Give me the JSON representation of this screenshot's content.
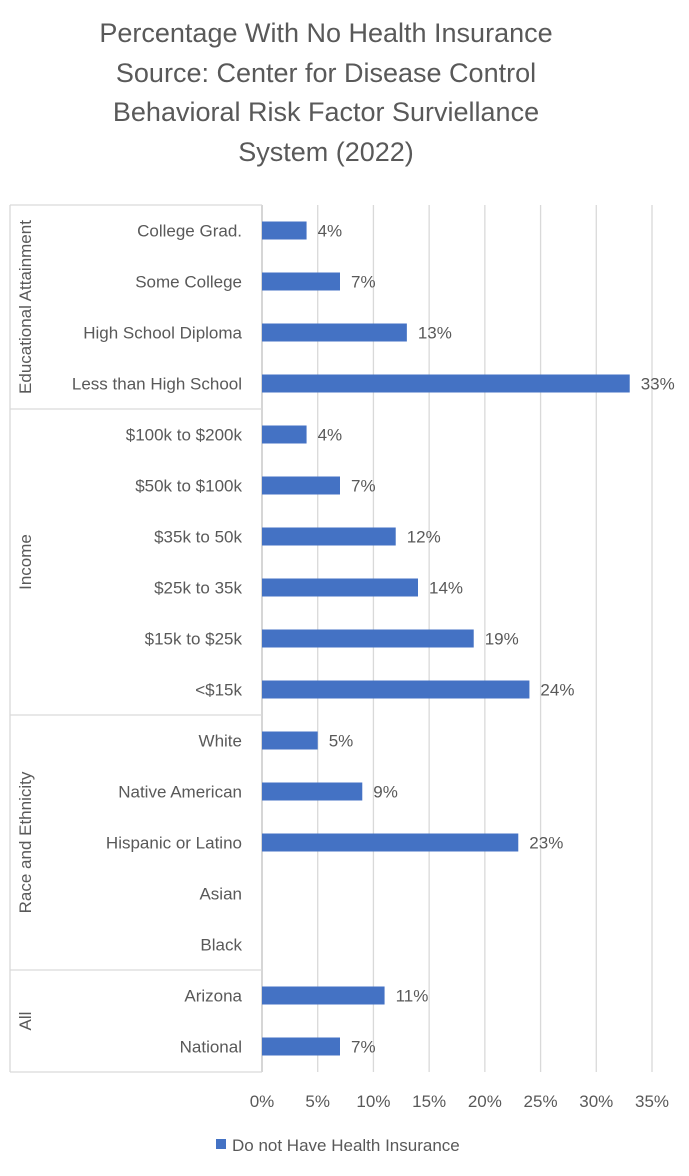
{
  "chart_data": {
    "type": "bar",
    "orientation": "horizontal",
    "title_lines": [
      "Percentage With No Health Insurance",
      "Source: Center for Disease Control",
      "Behavioral Risk Factor Surviellance",
      "System (2022)"
    ],
    "groups": [
      {
        "name": "Educational Attainment",
        "categories": [
          "College Grad.",
          "Some College",
          "High School Diploma",
          "Less than High School"
        ],
        "values": [
          4,
          7,
          13,
          33
        ]
      },
      {
        "name": "Income",
        "categories": [
          "$100k to $200k",
          "$50k to $100k",
          "$35k to 50k",
          "$25k to 35k",
          "$15k to $25k",
          "<$15k"
        ],
        "values": [
          4,
          7,
          12,
          14,
          19,
          24
        ]
      },
      {
        "name": "Race and Ethnicity",
        "categories": [
          "White",
          "Native American",
          "Hispanic or Latino",
          "Asian",
          "Black"
        ],
        "values": [
          5,
          9,
          23,
          null,
          null
        ]
      },
      {
        "name": "All",
        "categories": [
          "Arizona",
          "National"
        ],
        "values": [
          11,
          7
        ]
      }
    ],
    "series_name": "Do not Have Health Insurance",
    "xlim": [
      0,
      35
    ],
    "xticks": [
      "0%",
      "5%",
      "10%",
      "15%",
      "20%",
      "25%",
      "30%",
      "35%"
    ],
    "xtick_values": [
      0,
      5,
      10,
      15,
      20,
      25,
      30,
      35
    ],
    "value_suffix": "%",
    "grid": true,
    "legend_position": "bottom",
    "colors": {
      "bar": "#4472C4",
      "grid": "#D9D9D9",
      "text": "#595959"
    }
  }
}
